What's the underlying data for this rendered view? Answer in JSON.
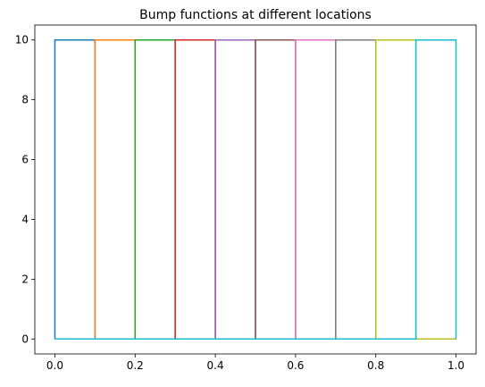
{
  "chart_data": {
    "type": "line",
    "title": "Bump functions at different locations",
    "xlabel": "",
    "ylabel": "",
    "xlim": [
      -0.05,
      1.05
    ],
    "ylim": [
      -0.5,
      10.5
    ],
    "xticks": [
      0.0,
      0.2,
      0.4,
      0.6,
      0.8,
      1.0
    ],
    "xtick_labels": [
      "0.0",
      "0.2",
      "0.4",
      "0.6",
      "0.8",
      "1.0"
    ],
    "yticks": [
      0,
      2,
      4,
      6,
      8,
      10
    ],
    "ytick_labels": [
      "0",
      "2",
      "4",
      "6",
      "8",
      "10"
    ],
    "grid": false,
    "legend": false,
    "series": [
      {
        "color": "#1f77b4",
        "x": [
          0.0,
          0.0,
          0.1,
          0.1,
          1.0
        ],
        "y": [
          0,
          10,
          10,
          0,
          0
        ]
      },
      {
        "color": "#ff7f0e",
        "x": [
          0.0,
          0.1,
          0.1,
          0.2,
          0.2,
          1.0
        ],
        "y": [
          0,
          0,
          10,
          10,
          0,
          0
        ]
      },
      {
        "color": "#2ca02c",
        "x": [
          0.0,
          0.2,
          0.2,
          0.3,
          0.3,
          1.0
        ],
        "y": [
          0,
          0,
          10,
          10,
          0,
          0
        ]
      },
      {
        "color": "#d62728",
        "x": [
          0.0,
          0.3,
          0.3,
          0.4,
          0.4,
          1.0
        ],
        "y": [
          0,
          0,
          10,
          10,
          0,
          0
        ]
      },
      {
        "color": "#9467bd",
        "x": [
          0.0,
          0.4,
          0.4,
          0.5,
          0.5,
          1.0
        ],
        "y": [
          0,
          0,
          10,
          10,
          0,
          0
        ]
      },
      {
        "color": "#8c564b",
        "x": [
          0.0,
          0.5,
          0.5,
          0.6,
          0.6,
          1.0
        ],
        "y": [
          0,
          0,
          10,
          10,
          0,
          0
        ]
      },
      {
        "color": "#e377c2",
        "x": [
          0.0,
          0.6,
          0.6,
          0.7,
          0.7,
          1.0
        ],
        "y": [
          0,
          0,
          10,
          10,
          0,
          0
        ]
      },
      {
        "color": "#7f7f7f",
        "x": [
          0.0,
          0.7,
          0.7,
          0.8,
          0.8,
          1.0
        ],
        "y": [
          0,
          0,
          10,
          10,
          0,
          0
        ]
      },
      {
        "color": "#bcbd22",
        "x": [
          0.0,
          0.8,
          0.8,
          0.9,
          0.9,
          1.0
        ],
        "y": [
          0,
          0,
          10,
          10,
          0,
          0
        ]
      },
      {
        "color": "#17becf",
        "x": [
          0.0,
          0.9,
          0.9,
          1.0,
          1.0
        ],
        "y": [
          0,
          0,
          10,
          10,
          0
        ]
      }
    ]
  }
}
